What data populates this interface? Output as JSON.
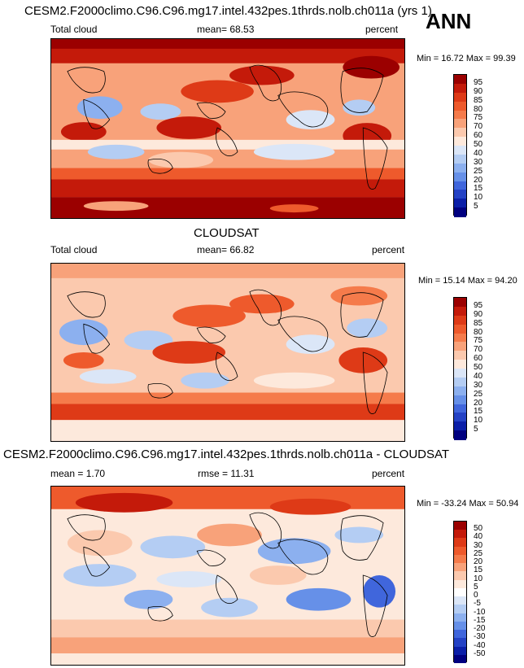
{
  "season": "ANN",
  "panels": [
    {
      "heading": "CESM2.F2000climo.C96.C96.mg17.intel.432pes.1thrds.nolb.ch011a (yrs 1)",
      "left_label": "Total cloud",
      "center_label": "mean=  68.53",
      "right_label": "percent",
      "minmax": "Min = 16.72 Max = 99.39",
      "colorbar": {
        "labels": [
          "95",
          "90",
          "85",
          "80",
          "75",
          "70",
          "60",
          "50",
          "40",
          "30",
          "25",
          "20",
          "15",
          "10",
          "5"
        ],
        "colors": [
          "#9b0000",
          "#c41a0a",
          "#de3a17",
          "#ee5a2c",
          "#f57b4b",
          "#f8a27a",
          "#fbc9ae",
          "#fde9dc",
          "#dbe6f7",
          "#b4cdf3",
          "#8cb0ef",
          "#6690e8",
          "#4066dc",
          "#2442c5",
          "#0b1fa8",
          "#000080"
        ]
      }
    },
    {
      "heading": "CLOUDSAT",
      "left_label": "Total cloud",
      "center_label": "mean=  66.82",
      "right_label": "percent",
      "minmax": "Min = 15.14 Max = 94.20",
      "colorbar": {
        "labels": [
          "95",
          "90",
          "85",
          "80",
          "75",
          "70",
          "60",
          "50",
          "40",
          "30",
          "25",
          "20",
          "15",
          "10",
          "5"
        ],
        "colors": [
          "#9b0000",
          "#c41a0a",
          "#de3a17",
          "#ee5a2c",
          "#f57b4b",
          "#f8a27a",
          "#fbc9ae",
          "#fde9dc",
          "#dbe6f7",
          "#b4cdf3",
          "#8cb0ef",
          "#6690e8",
          "#4066dc",
          "#2442c5",
          "#0b1fa8",
          "#000080"
        ]
      }
    },
    {
      "heading": "CESM2.F2000climo.C96.C96.mg17.intel.432pes.1thrds.nolb.ch011a - CLOUDSAT",
      "left_label": "mean =   1.70",
      "center_label": "rmse =  11.31",
      "right_label": "percent",
      "minmax": "Min = -33.24 Max = 50.94",
      "colorbar": {
        "labels": [
          "50",
          "40",
          "30",
          "25",
          "20",
          "15",
          "10",
          "5",
          "0",
          "-5",
          "-10",
          "-15",
          "-20",
          "-30",
          "-40",
          "-50"
        ],
        "colors": [
          "#9b0000",
          "#c41a0a",
          "#de3a17",
          "#ee5a2c",
          "#f57b4b",
          "#f8a27a",
          "#fbc9ae",
          "#fde9dc",
          "#ffffff",
          "#dbe6f7",
          "#b4cdf3",
          "#8cb0ef",
          "#6690e8",
          "#4066dc",
          "#2442c5",
          "#0b1fa8",
          "#000080"
        ]
      }
    }
  ]
}
